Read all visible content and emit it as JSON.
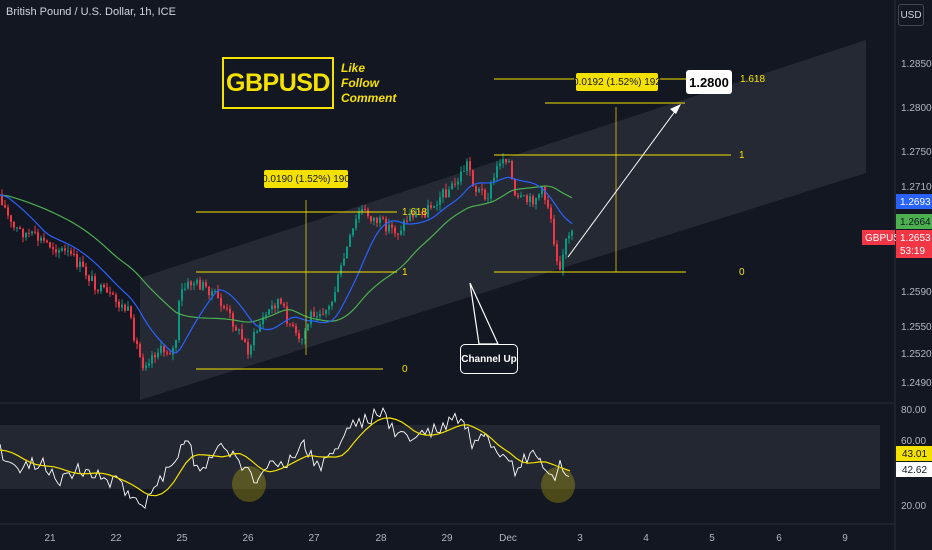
{
  "header": {
    "title": "British Pound / U.S. Dollar, 1h, ICE",
    "currency_button": "USD"
  },
  "branding": {
    "symbol": "GBPUSD",
    "cta": [
      "Like",
      "Follow",
      "Comment"
    ]
  },
  "annotations": {
    "target_label": "1.2800",
    "channel_label": "Channel Up",
    "measure_left": "0.0190 (1.52%) 190",
    "measure_right": "0.0192 (1.52%) 192",
    "fib_left": {
      "level_0": "0",
      "level_1": "1",
      "level_1618": "1.618"
    },
    "fib_right": {
      "level_0": "0",
      "level_1": "1",
      "level_1618": "1.618"
    }
  },
  "price_axis": {
    "ticks": [
      "1.2850",
      "1.2800",
      "1.2750",
      "1.2710",
      "1.2590",
      "1.2550",
      "1.2520",
      "1.2490"
    ],
    "tags": [
      {
        "label": "1.2693",
        "color": "#2962ff"
      },
      {
        "label": "1.2664",
        "color": "#4caf50"
      },
      {
        "label": "1.2653",
        "color": "#f23645"
      },
      {
        "label": "53:19",
        "color": "#f23645"
      }
    ],
    "symbol_tag": "GBPUSD"
  },
  "rsi_axis": {
    "ticks": [
      "80.00",
      "60.00",
      "20.00"
    ],
    "tags": [
      {
        "label": "43.01",
        "color": "#f5e100"
      },
      {
        "label": "42.62",
        "color": "#ffffff"
      }
    ]
  },
  "time_axis": {
    "labels": [
      "21",
      "22",
      "25",
      "26",
      "27",
      "28",
      "29",
      "Dec",
      "3",
      "4",
      "5",
      "6",
      "9"
    ]
  },
  "colors": {
    "background": "#131722",
    "bull": "#089981",
    "bear": "#f23645",
    "ma_fast": "#2962ff",
    "ma_slow": "#4caf50",
    "fib": "#f5e100",
    "rsi": "#ffffff",
    "rsi_ma": "#f5e100"
  }
}
